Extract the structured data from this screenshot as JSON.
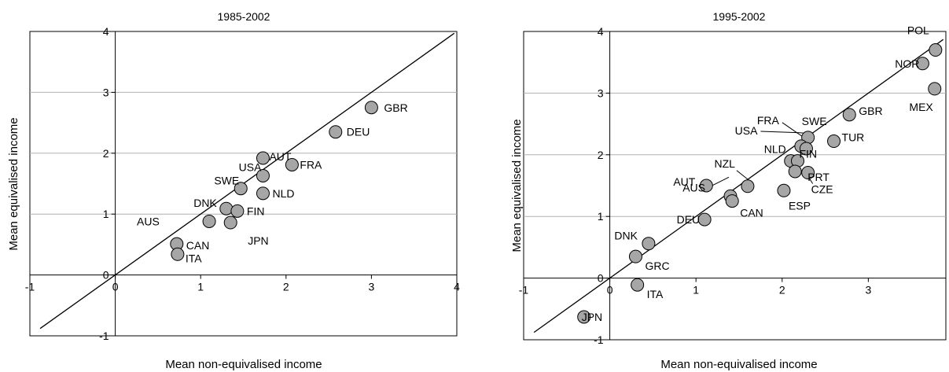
{
  "chart_data": [
    {
      "type": "scatter",
      "title": "1985-2002",
      "xlabel": "Mean non-equivalised income",
      "ylabel": "Mean equivalised income",
      "xlim": [
        -1,
        4
      ],
      "ylim": [
        -1,
        4
      ],
      "xticks": [
        "-1",
        "0",
        "1",
        "2",
        "3",
        "4"
      ],
      "yticks": [
        "-1",
        "0",
        "1",
        "2",
        "3",
        "4"
      ],
      "grid": "horizontal",
      "line": {
        "slope": 1,
        "intercept": 0
      },
      "points": [
        {
          "label": "GBR",
          "x": 3.0,
          "y": 2.75
        },
        {
          "label": "DEU",
          "x": 2.58,
          "y": 2.35
        },
        {
          "label": "AUT",
          "x": 1.73,
          "y": 1.92
        },
        {
          "label": "FRA",
          "x": 2.07,
          "y": 1.81
        },
        {
          "label": "USA",
          "x": 1.73,
          "y": 1.63
        },
        {
          "label": "SWE",
          "x": 1.47,
          "y": 1.42
        },
        {
          "label": "NLD",
          "x": 1.73,
          "y": 1.34
        },
        {
          "label": "DNK",
          "x": 1.3,
          "y": 1.09
        },
        {
          "label": "FIN",
          "x": 1.43,
          "y": 1.05
        },
        {
          "label": "AUS",
          "x": 1.1,
          "y": 0.88
        },
        {
          "label": "JPN",
          "x": 1.35,
          "y": 0.86
        },
        {
          "label": "CAN",
          "x": 0.72,
          "y": 0.51
        },
        {
          "label": "ITA",
          "x": 0.73,
          "y": 0.34
        }
      ]
    },
    {
      "type": "scatter",
      "title": "1995-2002",
      "xlabel": "Mean non-equivalised income",
      "ylabel": "Mean equivalised income",
      "xlim": [
        -1,
        3.9
      ],
      "ylim": [
        -1,
        4
      ],
      "xticks": [
        "-1",
        "0",
        "1",
        "2",
        "3"
      ],
      "yticks": [
        "-1",
        "0",
        "1",
        "2",
        "3",
        "4"
      ],
      "grid": "horizontal",
      "line": {
        "slope": 1,
        "intercept": 0
      },
      "points": [
        {
          "label": "POL",
          "x": 3.78,
          "y": 3.7
        },
        {
          "label": "NOR",
          "x": 3.63,
          "y": 3.48
        },
        {
          "label": "MEX",
          "x": 3.77,
          "y": 3.07
        },
        {
          "label": "GBR",
          "x": 2.78,
          "y": 2.65
        },
        {
          "label": "TUR",
          "x": 2.6,
          "y": 2.22
        },
        {
          "label": "SWE",
          "x": 2.3,
          "y": 2.28
        },
        {
          "label": "FRA",
          "x": 2.22,
          "y": 2.14
        },
        {
          "label": "USA",
          "x": 2.28,
          "y": 2.1
        },
        {
          "label": "NLD",
          "x": 2.1,
          "y": 1.9
        },
        {
          "label": "FIN",
          "x": 2.18,
          "y": 1.9
        },
        {
          "label": "PRT",
          "x": 2.15,
          "y": 1.73
        },
        {
          "label": "CZE",
          "x": 2.3,
          "y": 1.71
        },
        {
          "label": "ESP",
          "x": 2.02,
          "y": 1.42
        },
        {
          "label": "AUT",
          "x": 1.12,
          "y": 1.5
        },
        {
          "label": "NZL",
          "x": 1.6,
          "y": 1.49
        },
        {
          "label": "AUS",
          "x": 1.4,
          "y": 1.33
        },
        {
          "label": "CAN",
          "x": 1.42,
          "y": 1.25
        },
        {
          "label": "DEU",
          "x": 1.1,
          "y": 0.95
        },
        {
          "label": "DNK",
          "x": 0.45,
          "y": 0.56
        },
        {
          "label": "GRC",
          "x": 0.3,
          "y": 0.35
        },
        {
          "label": "ITA",
          "x": 0.32,
          "y": -0.11
        },
        {
          "label": "JPN",
          "x": -0.3,
          "y": -0.63
        }
      ]
    }
  ]
}
